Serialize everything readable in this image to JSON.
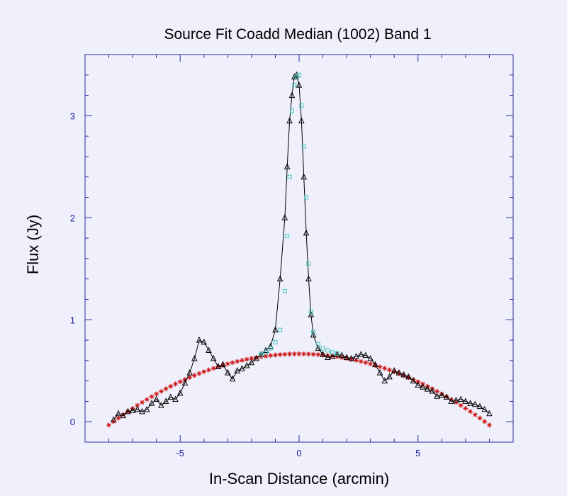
{
  "chart_data": {
    "type": "scatter",
    "title": "Source Fit Coadd Median (1002) Band 1",
    "xlabel": "In-Scan Distance (arcmin)",
    "ylabel": "Flux (Jy)",
    "xlim": [
      -9,
      9
    ],
    "ylim": [
      -0.2,
      3.6
    ],
    "x_ticks": [
      -5,
      0,
      5
    ],
    "x_tick_labels": [
      "-5",
      "0",
      "5"
    ],
    "y_ticks": [
      0,
      1,
      2,
      3
    ],
    "y_tick_labels": [
      "0",
      "1",
      "2",
      "3"
    ],
    "grid": false,
    "legend": "none",
    "series": [
      {
        "role": "data",
        "color": "#000000",
        "marker": "triangle",
        "connected": true,
        "x": [
          -7.8,
          -7.6,
          -7.4,
          -7.2,
          -7.0,
          -6.8,
          -6.6,
          -6.4,
          -6.2,
          -6.0,
          -5.8,
          -5.6,
          -5.4,
          -5.2,
          -5.0,
          -4.8,
          -4.6,
          -4.4,
          -4.2,
          -4.0,
          -3.8,
          -3.6,
          -3.4,
          -3.2,
          -3.0,
          -2.8,
          -2.6,
          -2.4,
          -2.2,
          -2.0,
          -1.8,
          -1.6,
          -1.4,
          -1.2,
          -1.0,
          -0.8,
          -0.6,
          -0.5,
          -0.4,
          -0.3,
          -0.2,
          -0.1,
          0.0,
          0.1,
          0.2,
          0.3,
          0.4,
          0.5,
          0.6,
          0.8,
          1.0,
          1.2,
          1.4,
          1.6,
          1.8,
          2.0,
          2.2,
          2.4,
          2.6,
          2.8,
          3.0,
          3.2,
          3.4,
          3.6,
          3.8,
          4.0,
          4.2,
          4.4,
          4.6,
          4.8,
          5.0,
          5.2,
          5.4,
          5.6,
          5.8,
          6.0,
          6.2,
          6.4,
          6.6,
          6.8,
          7.0,
          7.2,
          7.4,
          7.6,
          7.8,
          8.0
        ],
        "y": [
          0.02,
          0.08,
          0.06,
          0.1,
          0.11,
          0.12,
          0.1,
          0.12,
          0.18,
          0.22,
          0.16,
          0.2,
          0.24,
          0.22,
          0.28,
          0.38,
          0.48,
          0.62,
          0.8,
          0.78,
          0.7,
          0.62,
          0.54,
          0.56,
          0.48,
          0.42,
          0.5,
          0.52,
          0.55,
          0.58,
          0.62,
          0.66,
          0.7,
          0.74,
          0.9,
          1.4,
          2.0,
          2.5,
          2.95,
          3.2,
          3.38,
          3.4,
          3.3,
          2.95,
          2.4,
          1.85,
          1.4,
          1.05,
          0.85,
          0.72,
          0.66,
          0.63,
          0.64,
          0.66,
          0.65,
          0.63,
          0.62,
          0.64,
          0.66,
          0.65,
          0.62,
          0.56,
          0.48,
          0.4,
          0.44,
          0.5,
          0.48,
          0.46,
          0.44,
          0.4,
          0.36,
          0.34,
          0.32,
          0.3,
          0.25,
          0.26,
          0.24,
          0.2,
          0.21,
          0.22,
          0.2,
          0.18,
          0.17,
          0.15,
          0.12,
          0.08
        ]
      },
      {
        "role": "fit",
        "color": "#40c8c0",
        "marker": "square",
        "connected": false,
        "x": [
          -1.6,
          -1.4,
          -1.2,
          -1.0,
          -0.8,
          -0.6,
          -0.5,
          -0.4,
          -0.3,
          -0.2,
          -0.1,
          0.0,
          0.1,
          0.2,
          0.3,
          0.4,
          0.5,
          0.6,
          0.8,
          1.0,
          1.2,
          1.4,
          1.6
        ],
        "y": [
          0.66,
          0.68,
          0.72,
          0.78,
          0.9,
          1.28,
          1.82,
          2.4,
          3.05,
          3.3,
          3.38,
          3.4,
          3.1,
          2.7,
          2.2,
          1.55,
          1.08,
          0.88,
          0.76,
          0.72,
          0.7,
          0.68,
          0.67
        ]
      },
      {
        "role": "background",
        "color": "#cc1010",
        "marker": "asterisk",
        "connected": false,
        "quadratic": {
          "a": -0.0109,
          "b": 0.0,
          "c": 0.665,
          "x_from": -8.0,
          "x_to": 8.1,
          "step": 0.2
        }
      }
    ]
  }
}
